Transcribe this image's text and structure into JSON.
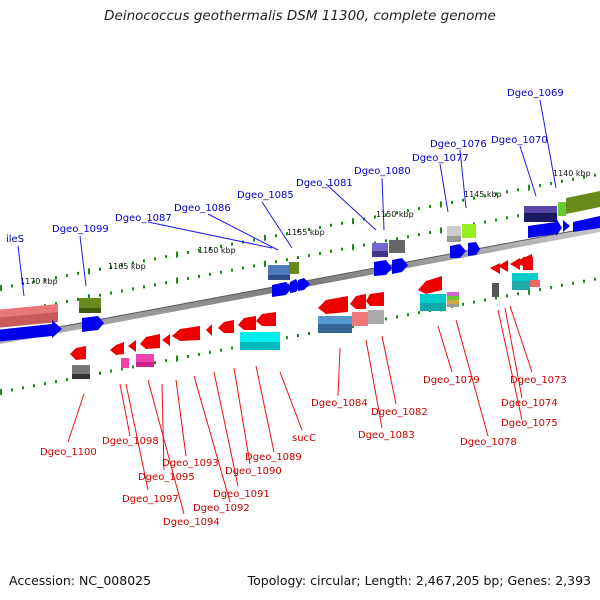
{
  "title": "Deinococcus geothermalis DSM 11300, complete genome",
  "footer": {
    "accession": "Accession: NC_008025",
    "summary": "Topology: circular; Length: 2,467,205 bp; Genes: 2,393"
  },
  "colors": {
    "upper_label": "#0000cc",
    "lower_label": "#cc0000",
    "backbone": "#8a8a8a",
    "tick": "#1a8a1a"
  },
  "ticks": [
    "1140 kbp",
    "1145 kbp",
    "1150 kbp",
    "1155 kbp",
    "1160 kbp",
    "1165 kbp",
    "1170 kbp"
  ],
  "upper_labels": [
    "Dgeo_1069",
    "Dgeo_1070",
    "Dgeo_1076",
    "Dgeo_1077",
    "Dgeo_1080",
    "Dgeo_1081",
    "Dgeo_1085",
    "Dgeo_1086",
    "Dgeo_1087",
    "Dgeo_1099",
    "ileS"
  ],
  "lower_labels": [
    "Dgeo_1073",
    "Dgeo_1074",
    "Dgeo_1075",
    "Dgeo_1078",
    "Dgeo_1079",
    "Dgeo_1082",
    "Dgeo_1083",
    "Dgeo_1084",
    "sucC",
    "Dgeo_1089",
    "Dgeo_1090",
    "Dgeo_1091",
    "Dgeo_1092",
    "Dgeo_1093",
    "Dgeo_1094",
    "Dgeo_1095",
    "Dgeo_1097",
    "Dgeo_1098",
    "Dgeo_1100"
  ]
}
